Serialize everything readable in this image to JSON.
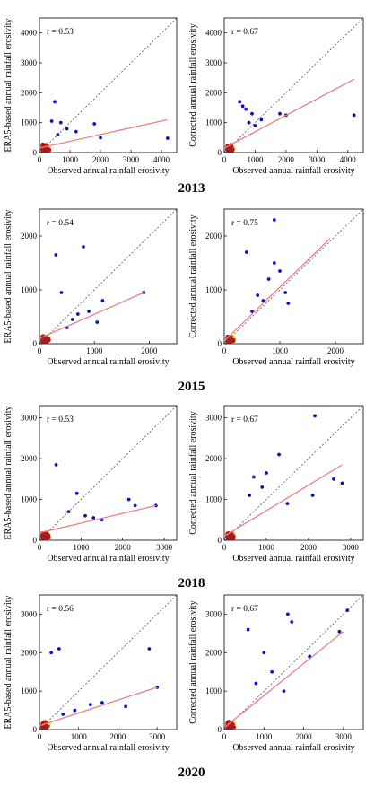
{
  "colors": {
    "point_high": "#1010c8",
    "point_mid": "#3fd0d0",
    "point_mid2": "#e8e030",
    "point_low": "#b01818",
    "fit_line": "#f08080",
    "identity_line": "#555555",
    "axes": "#000000"
  },
  "years": [
    {
      "label": "2013"
    },
    {
      "label": "2015"
    },
    {
      "label": "2018"
    },
    {
      "label": "2020"
    }
  ],
  "chart_data": [
    {
      "type": "scatter",
      "year": "2013",
      "panel": "ERA5",
      "title": "",
      "annotation": "r = 0.53",
      "xlabel": "Observed annual rainfall erosivity",
      "ylabel": "ERA5-based annual rainfall erosivity",
      "xlim": [
        0,
        4500
      ],
      "ylim": [
        0,
        4500
      ],
      "xticks": [
        0,
        1000,
        2000,
        3000,
        4000
      ],
      "yticks": [
        0,
        1000,
        2000,
        3000,
        4000
      ],
      "fit_line": [
        [
          0,
          150
        ],
        [
          4200,
          1100
        ]
      ],
      "highlights": [
        [
          500,
          1700
        ],
        [
          400,
          1050
        ],
        [
          700,
          1000
        ],
        [
          1800,
          960
        ],
        [
          2000,
          500
        ],
        [
          4200,
          480
        ],
        [
          1200,
          700
        ],
        [
          900,
          800
        ],
        [
          600,
          600
        ]
      ]
    },
    {
      "type": "scatter",
      "year": "2013",
      "panel": "Corrected",
      "title": "",
      "annotation": "r = 0.67",
      "xlabel": "Observed annual rainfall erosivity",
      "ylabel": "Corrected annual rainfall erosivity",
      "xlim": [
        0,
        4500
      ],
      "ylim": [
        0,
        4500
      ],
      "xticks": [
        0,
        1000,
        2000,
        3000,
        4000
      ],
      "yticks": [
        0,
        1000,
        2000,
        3000,
        4000
      ],
      "fit_line": [
        [
          0,
          150
        ],
        [
          4200,
          2450
        ]
      ],
      "highlights": [
        [
          500,
          1700
        ],
        [
          700,
          1450
        ],
        [
          900,
          1300
        ],
        [
          1200,
          1100
        ],
        [
          1800,
          1300
        ],
        [
          2000,
          1250
        ],
        [
          4200,
          1250
        ],
        [
          1000,
          900
        ],
        [
          600,
          1550
        ],
        [
          800,
          1000
        ]
      ]
    },
    {
      "type": "scatter",
      "year": "2015",
      "panel": "ERA5",
      "title": "",
      "annotation": "r = 0.54",
      "xlabel": "Observed annual rainfall erosivity",
      "ylabel": "ERA5-based annual rainfall erosivity",
      "xlim": [
        0,
        2500
      ],
      "ylim": [
        0,
        2500
      ],
      "xticks": [
        0,
        1000,
        2000
      ],
      "yticks": [
        0,
        1000,
        2000
      ],
      "fit_line": [
        [
          0,
          100
        ],
        [
          1900,
          950
        ]
      ],
      "highlights": [
        [
          300,
          1650
        ],
        [
          800,
          1800
        ],
        [
          400,
          950
        ],
        [
          1900,
          950
        ],
        [
          1150,
          800
        ],
        [
          700,
          550
        ],
        [
          900,
          600
        ],
        [
          1050,
          400
        ],
        [
          500,
          300
        ],
        [
          600,
          450
        ]
      ]
    },
    {
      "type": "scatter",
      "year": "2015",
      "panel": "Corrected",
      "title": "",
      "annotation": "r = 0.75",
      "xlabel": "Observed annual rainfall erosivity",
      "ylabel": "Corrected annual rainfall erosivity",
      "xlim": [
        0,
        2500
      ],
      "ylim": [
        0,
        2500
      ],
      "xticks": [
        0,
        1000,
        2000
      ],
      "yticks": [
        0,
        1000,
        2000
      ],
      "fit_line": [
        [
          0,
          50
        ],
        [
          1900,
          1950
        ]
      ],
      "highlights": [
        [
          900,
          2300
        ],
        [
          400,
          1700
        ],
        [
          900,
          1500
        ],
        [
          1000,
          1350
        ],
        [
          800,
          1200
        ],
        [
          1100,
          950
        ],
        [
          700,
          800
        ],
        [
          600,
          900
        ],
        [
          1150,
          750
        ],
        [
          500,
          600
        ]
      ]
    },
    {
      "type": "scatter",
      "year": "2018",
      "panel": "ERA5",
      "title": "",
      "annotation": "r = 0.53",
      "xlabel": "Observed annual rainfall erosivity",
      "ylabel": "ERA5-based annual rainfall erosivity",
      "xlim": [
        0,
        3300
      ],
      "ylim": [
        0,
        3300
      ],
      "xticks": [
        0,
        1000,
        2000,
        3000
      ],
      "yticks": [
        0,
        1000,
        2000,
        3000
      ],
      "fit_line": [
        [
          0,
          180
        ],
        [
          2800,
          850
        ]
      ],
      "highlights": [
        [
          400,
          1850
        ],
        [
          900,
          1150
        ],
        [
          2150,
          1000
        ],
        [
          2300,
          850
        ],
        [
          2800,
          850
        ],
        [
          1100,
          600
        ],
        [
          700,
          700
        ],
        [
          1500,
          500
        ],
        [
          1300,
          550
        ]
      ]
    },
    {
      "type": "scatter",
      "year": "2018",
      "panel": "Corrected",
      "title": "",
      "annotation": "r = 0.67",
      "xlabel": "Observed annual rainfall erosivity",
      "ylabel": "Corrected annual rainfall erosivity",
      "xlim": [
        0,
        3300
      ],
      "ylim": [
        0,
        3300
      ],
      "xticks": [
        0,
        1000,
        2000,
        3000
      ],
      "yticks": [
        0,
        1000,
        2000,
        3000
      ],
      "fit_line": [
        [
          0,
          100
        ],
        [
          2800,
          1850
        ]
      ],
      "highlights": [
        [
          2150,
          3050
        ],
        [
          1300,
          2100
        ],
        [
          1000,
          1650
        ],
        [
          700,
          1550
        ],
        [
          2100,
          1100
        ],
        [
          2600,
          1500
        ],
        [
          2800,
          1400
        ],
        [
          900,
          1300
        ],
        [
          600,
          1100
        ],
        [
          1500,
          900
        ]
      ]
    },
    {
      "type": "scatter",
      "year": "2020",
      "panel": "ERA5",
      "title": "",
      "annotation": "r = 0.56",
      "xlabel": "Observed annual rainfall erosivity",
      "ylabel": "ERA5-based annual rainfall erosivity",
      "xlim": [
        0,
        3500
      ],
      "ylim": [
        0,
        3500
      ],
      "xticks": [
        0,
        1000,
        2000,
        3000
      ],
      "yticks": [
        0,
        1000,
        2000,
        3000
      ],
      "fit_line": [
        [
          0,
          100
        ],
        [
          3000,
          1100
        ]
      ],
      "highlights": [
        [
          300,
          2000
        ],
        [
          500,
          2100
        ],
        [
          2800,
          2100
        ],
        [
          3000,
          1100
        ],
        [
          1600,
          700
        ],
        [
          1300,
          650
        ],
        [
          2200,
          600
        ],
        [
          900,
          500
        ],
        [
          600,
          400
        ]
      ]
    },
    {
      "type": "scatter",
      "year": "2020",
      "panel": "Corrected",
      "title": "",
      "annotation": "r = 0.67",
      "xlabel": "Observed annual rainfall erosivity",
      "ylabel": "Corrected annual rainfall erosivity",
      "xlim": [
        0,
        3500
      ],
      "ylim": [
        0,
        3500
      ],
      "xticks": [
        0,
        1000,
        2000,
        3000
      ],
      "yticks": [
        0,
        1000,
        2000,
        3000
      ],
      "fit_line": [
        [
          0,
          50
        ],
        [
          3000,
          2550
        ]
      ],
      "highlights": [
        [
          3100,
          3100
        ],
        [
          1600,
          3000
        ],
        [
          1700,
          2800
        ],
        [
          2900,
          2550
        ],
        [
          600,
          2600
        ],
        [
          1000,
          2000
        ],
        [
          2150,
          1900
        ],
        [
          1200,
          1500
        ],
        [
          800,
          1200
        ],
        [
          1500,
          1000
        ]
      ]
    }
  ]
}
